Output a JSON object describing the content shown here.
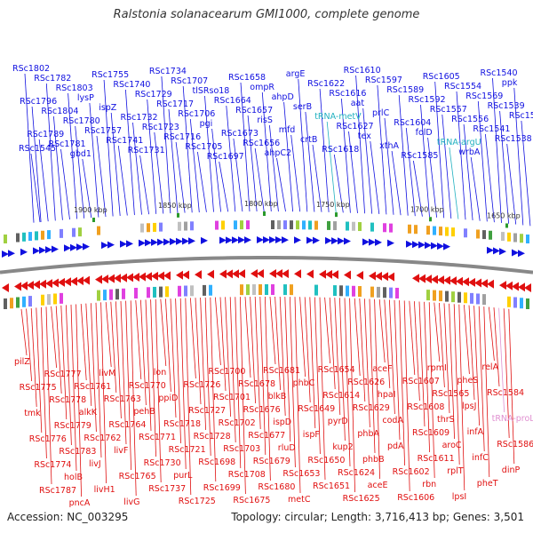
{
  "header": {
    "title": "Ralstonia solanacearum GMI1000, complete genome"
  },
  "footer": {
    "accession": "Accession: NC_003295",
    "summary": "Topology: circular; Length: 3,716,413 bp; Genes: 3,501"
  },
  "colors": {
    "forward_strand": "#1010e0",
    "reverse_strand": "#e01010",
    "trna": "#20b0c0",
    "trna_reverse": "#e090d0",
    "backbone": "#888888",
    "tick": "#2a9a2a"
  },
  "scale_ticks": [
    "1900 kbp",
    "1850 kbp",
    "1800 kbp",
    "1750 kbp",
    "1700 kbp",
    "1650 kbp"
  ],
  "top_labels": [
    "RSc1802",
    "RSc1796",
    "RSc1789",
    "RSc1782",
    "RSc1804",
    "RSc1781",
    "RSc1803",
    "RSc1780",
    "gbd1",
    "lysP",
    "RSc1757",
    "RSc1755",
    "ispZ",
    "RSc1741",
    "RSc1740",
    "RSc1732",
    "RSc1731",
    "RSc1729",
    "RSc1723",
    "RSc1734",
    "RSc1717",
    "RSc1716",
    "RSc1707",
    "RSc1706",
    "RSc1705",
    "tlSRso18",
    "pgi",
    "RSc1697",
    "RSc1664",
    "RSc1673",
    "RSc1658",
    "RSc1657",
    "RSc1656",
    "ompR",
    "risS",
    "ahpC2",
    "ahpD",
    "mfd",
    "argE",
    "serB",
    "crtB",
    "RSc1622",
    "tRNA-metV",
    "RSc1618",
    "RSc1616",
    "RSc1627",
    "RSc1610",
    "aat",
    "tex",
    "RSc1597",
    "prlC",
    "xthA",
    "RSc1589",
    "RSc1604",
    "RSc1585",
    "RSc1592",
    "folD",
    "RSc1605",
    "RSc1557",
    "tRNA-argU",
    "RSc1554",
    "RSc1556",
    "wrbA",
    "RSc1569",
    "RSc1541",
    "RSc1540",
    "RSc1539",
    "RSc1538",
    "ppk",
    "RSc1542",
    "RSc1545"
  ],
  "bottom_labels": [
    "pilZ",
    "RSc1775",
    "tmk",
    "RSc1776",
    "RSc1774",
    "RSc1787",
    "RSc1777",
    "RSc1778",
    "RSc1779",
    "RSc1783",
    "holB",
    "pncA",
    "RSc1761",
    "alkK",
    "RSc1762",
    "livJ",
    "livH1",
    "livM",
    "RSc1763",
    "RSc1764",
    "livF",
    "RSc1765",
    "livG",
    "RSc1770",
    "pehB",
    "RSc1771",
    "RSc1730",
    "RSc1737",
    "lon",
    "ppiD",
    "RSc1718",
    "RSc1721",
    "purL",
    "RSc1725",
    "RSc1726",
    "RSc1727",
    "RSc1728",
    "RSc1698",
    "RSc1699",
    "RSc1700",
    "RSc1701",
    "RSc1702",
    "RSc1703",
    "RSc1708",
    "RSc1675",
    "RSc1678",
    "RSc1676",
    "RSc1677",
    "RSc1679",
    "RSc1680",
    "RSc1681",
    "blkB",
    "ispD",
    "rluD",
    "RSc1653",
    "metC",
    "phbC",
    "RSc1649",
    "ispF",
    "RSc1650",
    "RSc1651",
    "RSc1654",
    "RSc1614",
    "pyrD",
    "kup2",
    "RSc1624",
    "RSc1625",
    "RSc1626",
    "RSc1629",
    "phbA",
    "phbB",
    "aceE",
    "aceF",
    "hpaI",
    "codA",
    "pdA",
    "RSc1602",
    "RSc1606",
    "RSc1607",
    "RSc1608",
    "RSc1609",
    "RSc1611",
    "rbn",
    "rpmI",
    "RSc1565",
    "thrS",
    "aroC",
    "rplT",
    "lpsI",
    "pheS",
    "lpsJ",
    "infA",
    "infC",
    "pheT",
    "relA",
    "RSc1584",
    "tRNA-proL",
    "RSc1586",
    "dinP"
  ]
}
